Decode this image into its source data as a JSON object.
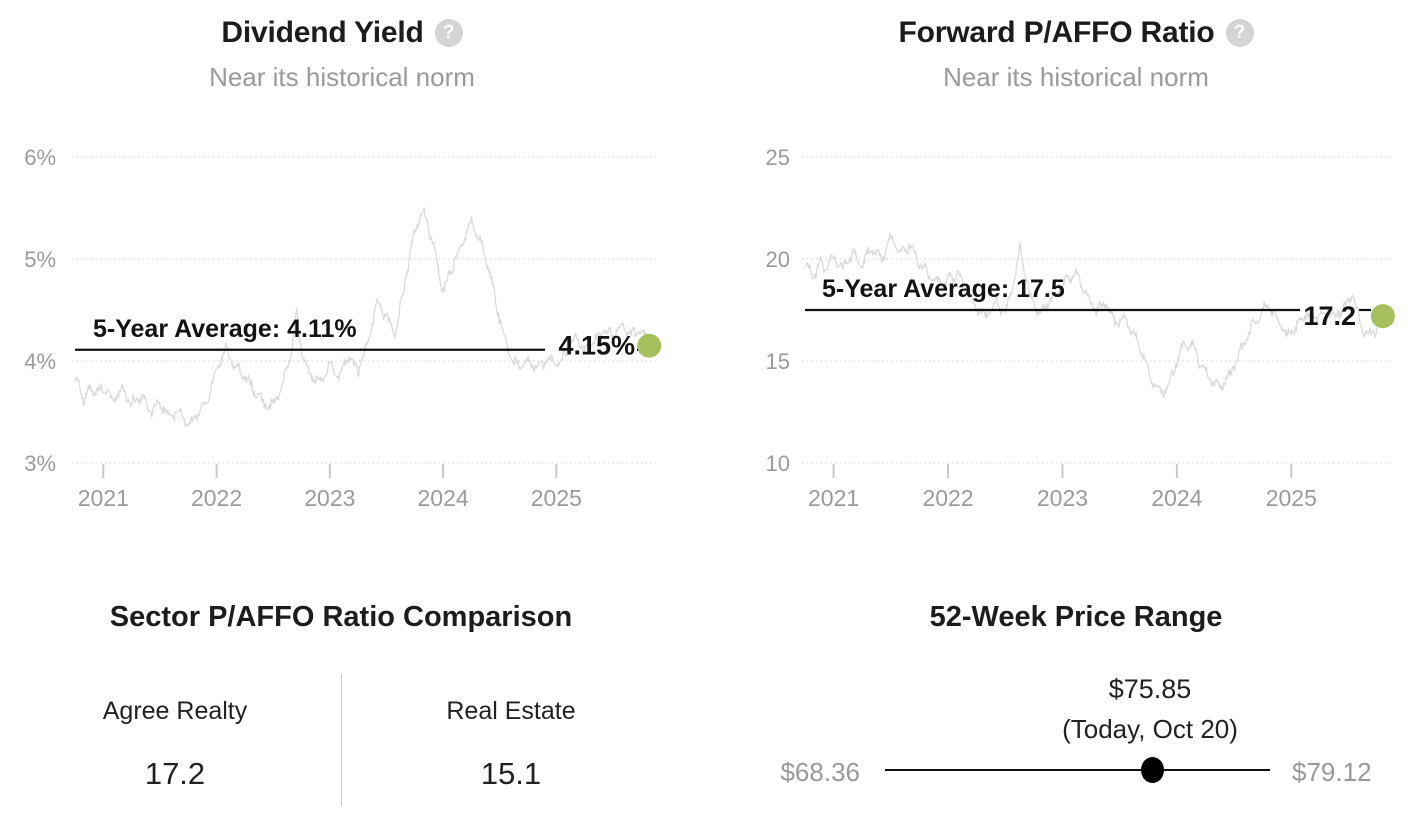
{
  "colors": {
    "text": "#1c1c1c",
    "muted": "#9a9a9a",
    "axis": "#9b9b9b",
    "grid": "#cfcfcf",
    "series": "#d9d9d9",
    "average_line": "#111111",
    "marker": "#a6c05e",
    "slider": "#000000",
    "divider": "#cccccc"
  },
  "chart_data": [
    {
      "type": "line",
      "title": "Dividend Yield",
      "help_icon": "?",
      "subtitle": "Near its historical norm",
      "legend": "none",
      "grid": "dotted-horizontal",
      "xlim": [
        2020.75,
        2025.88
      ],
      "ylim": [
        2.8,
        6.3
      ],
      "yticks": [
        {
          "label": "6%",
          "value": 6
        },
        {
          "label": "5%",
          "value": 5
        },
        {
          "label": "4%",
          "value": 4
        },
        {
          "label": "3%",
          "value": 3
        }
      ],
      "xticks": [
        {
          "label": "2021",
          "value": 2021
        },
        {
          "label": "2022",
          "value": 2022
        },
        {
          "label": "2023",
          "value": 2023
        },
        {
          "label": "2024",
          "value": 2024
        },
        {
          "label": "2025",
          "value": 2025
        }
      ],
      "average": {
        "value": 4.11,
        "label": "5-Year Average: 4.11%"
      },
      "current": {
        "value": 4.15,
        "label": "4.15%"
      },
      "line_color": "#d9d9d9",
      "marker_color": "#a6c05e",
      "series": {
        "name": "Dividend Yield (%)",
        "x": [
          2020.78,
          2020.83,
          2020.88,
          2020.92,
          2021.0,
          2021.08,
          2021.17,
          2021.25,
          2021.33,
          2021.42,
          2021.5,
          2021.58,
          2021.67,
          2021.75,
          2021.83,
          2021.92,
          2022.0,
          2022.08,
          2022.17,
          2022.25,
          2022.33,
          2022.42,
          2022.5,
          2022.58,
          2022.67,
          2022.71,
          2022.75,
          2022.83,
          2022.92,
          2023.0,
          2023.08,
          2023.17,
          2023.25,
          2023.33,
          2023.42,
          2023.5,
          2023.58,
          2023.67,
          2023.75,
          2023.83,
          2023.92,
          2024.0,
          2024.08,
          2024.17,
          2024.25,
          2024.33,
          2024.42,
          2024.5,
          2024.58,
          2024.67,
          2024.75,
          2024.83,
          2024.92,
          2025.0,
          2025.08,
          2025.17,
          2025.25,
          2025.33,
          2025.42,
          2025.5,
          2025.58,
          2025.67,
          2025.75,
          2025.82
        ],
        "y": [
          3.8,
          3.58,
          3.76,
          3.68,
          3.74,
          3.62,
          3.72,
          3.58,
          3.66,
          3.5,
          3.6,
          3.45,
          3.52,
          3.36,
          3.48,
          3.6,
          3.92,
          4.1,
          3.94,
          3.86,
          3.7,
          3.58,
          3.56,
          3.76,
          4.12,
          4.5,
          4.1,
          3.86,
          3.78,
          3.96,
          3.86,
          4.06,
          3.9,
          4.16,
          4.58,
          4.42,
          4.26,
          4.82,
          5.28,
          5.48,
          5.12,
          4.68,
          4.92,
          5.16,
          5.38,
          5.18,
          4.82,
          4.42,
          4.05,
          3.94,
          4.0,
          3.92,
          4.02,
          3.96,
          4.06,
          4.24,
          4.1,
          4.2,
          4.3,
          4.24,
          4.34,
          4.26,
          4.3,
          4.15
        ]
      }
    },
    {
      "type": "line",
      "title": "Forward P/AFFO Ratio",
      "help_icon": "?",
      "subtitle": "Near its historical norm",
      "legend": "none",
      "grid": "dotted-horizontal",
      "xlim": [
        2020.75,
        2025.88
      ],
      "ylim": [
        9,
        26
      ],
      "yticks": [
        {
          "label": "25",
          "value": 25
        },
        {
          "label": "20",
          "value": 20
        },
        {
          "label": "15",
          "value": 15
        },
        {
          "label": "10",
          "value": 10
        }
      ],
      "xticks": [
        {
          "label": "2021",
          "value": 2021
        },
        {
          "label": "2022",
          "value": 2022
        },
        {
          "label": "2023",
          "value": 2023
        },
        {
          "label": "2024",
          "value": 2024
        },
        {
          "label": "2025",
          "value": 2025
        }
      ],
      "average": {
        "value": 17.5,
        "label": "5-Year Average: 17.5"
      },
      "current": {
        "value": 17.2,
        "label": "17.2"
      },
      "line_color": "#d9d9d9",
      "marker_color": "#a6c05e",
      "series": {
        "name": "Forward P/AFFO Ratio",
        "x": [
          2020.78,
          2020.83,
          2020.88,
          2020.92,
          2021.0,
          2021.08,
          2021.17,
          2021.25,
          2021.33,
          2021.42,
          2021.5,
          2021.58,
          2021.67,
          2021.75,
          2021.83,
          2021.92,
          2022.0,
          2022.08,
          2022.17,
          2022.25,
          2022.33,
          2022.42,
          2022.5,
          2022.58,
          2022.63,
          2022.71,
          2022.79,
          2022.88,
          2022.96,
          2023.04,
          2023.13,
          2023.21,
          2023.29,
          2023.38,
          2023.46,
          2023.54,
          2023.63,
          2023.71,
          2023.79,
          2023.88,
          2023.96,
          2024.04,
          2024.13,
          2024.21,
          2024.29,
          2024.38,
          2024.46,
          2024.54,
          2024.63,
          2024.71,
          2024.79,
          2024.88,
          2024.96,
          2025.04,
          2025.13,
          2025.21,
          2025.29,
          2025.38,
          2025.46,
          2025.54,
          2025.6,
          2025.67,
          2025.75,
          2025.8
        ],
        "y": [
          19.6,
          19.1,
          19.9,
          19.4,
          20.1,
          19.5,
          20.3,
          19.7,
          20.6,
          19.9,
          21.1,
          20.3,
          20.7,
          19.8,
          19.2,
          18.8,
          18.9,
          19.3,
          18.4,
          17.6,
          17.2,
          17.9,
          17.3,
          19.0,
          20.6,
          18.3,
          17.2,
          17.9,
          18.3,
          19.1,
          19.3,
          18.2,
          17.5,
          17.9,
          16.9,
          17.1,
          16.3,
          15.2,
          13.9,
          13.4,
          14.3,
          15.6,
          15.9,
          14.8,
          14.1,
          13.7,
          14.3,
          15.3,
          16.3,
          17.1,
          17.8,
          17.0,
          16.2,
          16.7,
          17.3,
          17.1,
          17.4,
          17.2,
          17.6,
          18.3,
          16.8,
          16.2,
          16.6,
          17.2
        ]
      }
    }
  ],
  "comparison": {
    "title": "Sector P/AFFO Ratio Comparison",
    "columns": [
      {
        "label": "Agree Realty",
        "value": "17.2"
      },
      {
        "label": "Real Estate",
        "value": "15.1"
      }
    ]
  },
  "price_range": {
    "title": "52-Week Price Range",
    "low": {
      "label": "$68.36",
      "value": 68.36
    },
    "high": {
      "label": "$79.12",
      "value": 79.12
    },
    "today": {
      "label": "$75.85",
      "value": 75.85,
      "sublabel": "(Today, Oct 20)"
    }
  }
}
